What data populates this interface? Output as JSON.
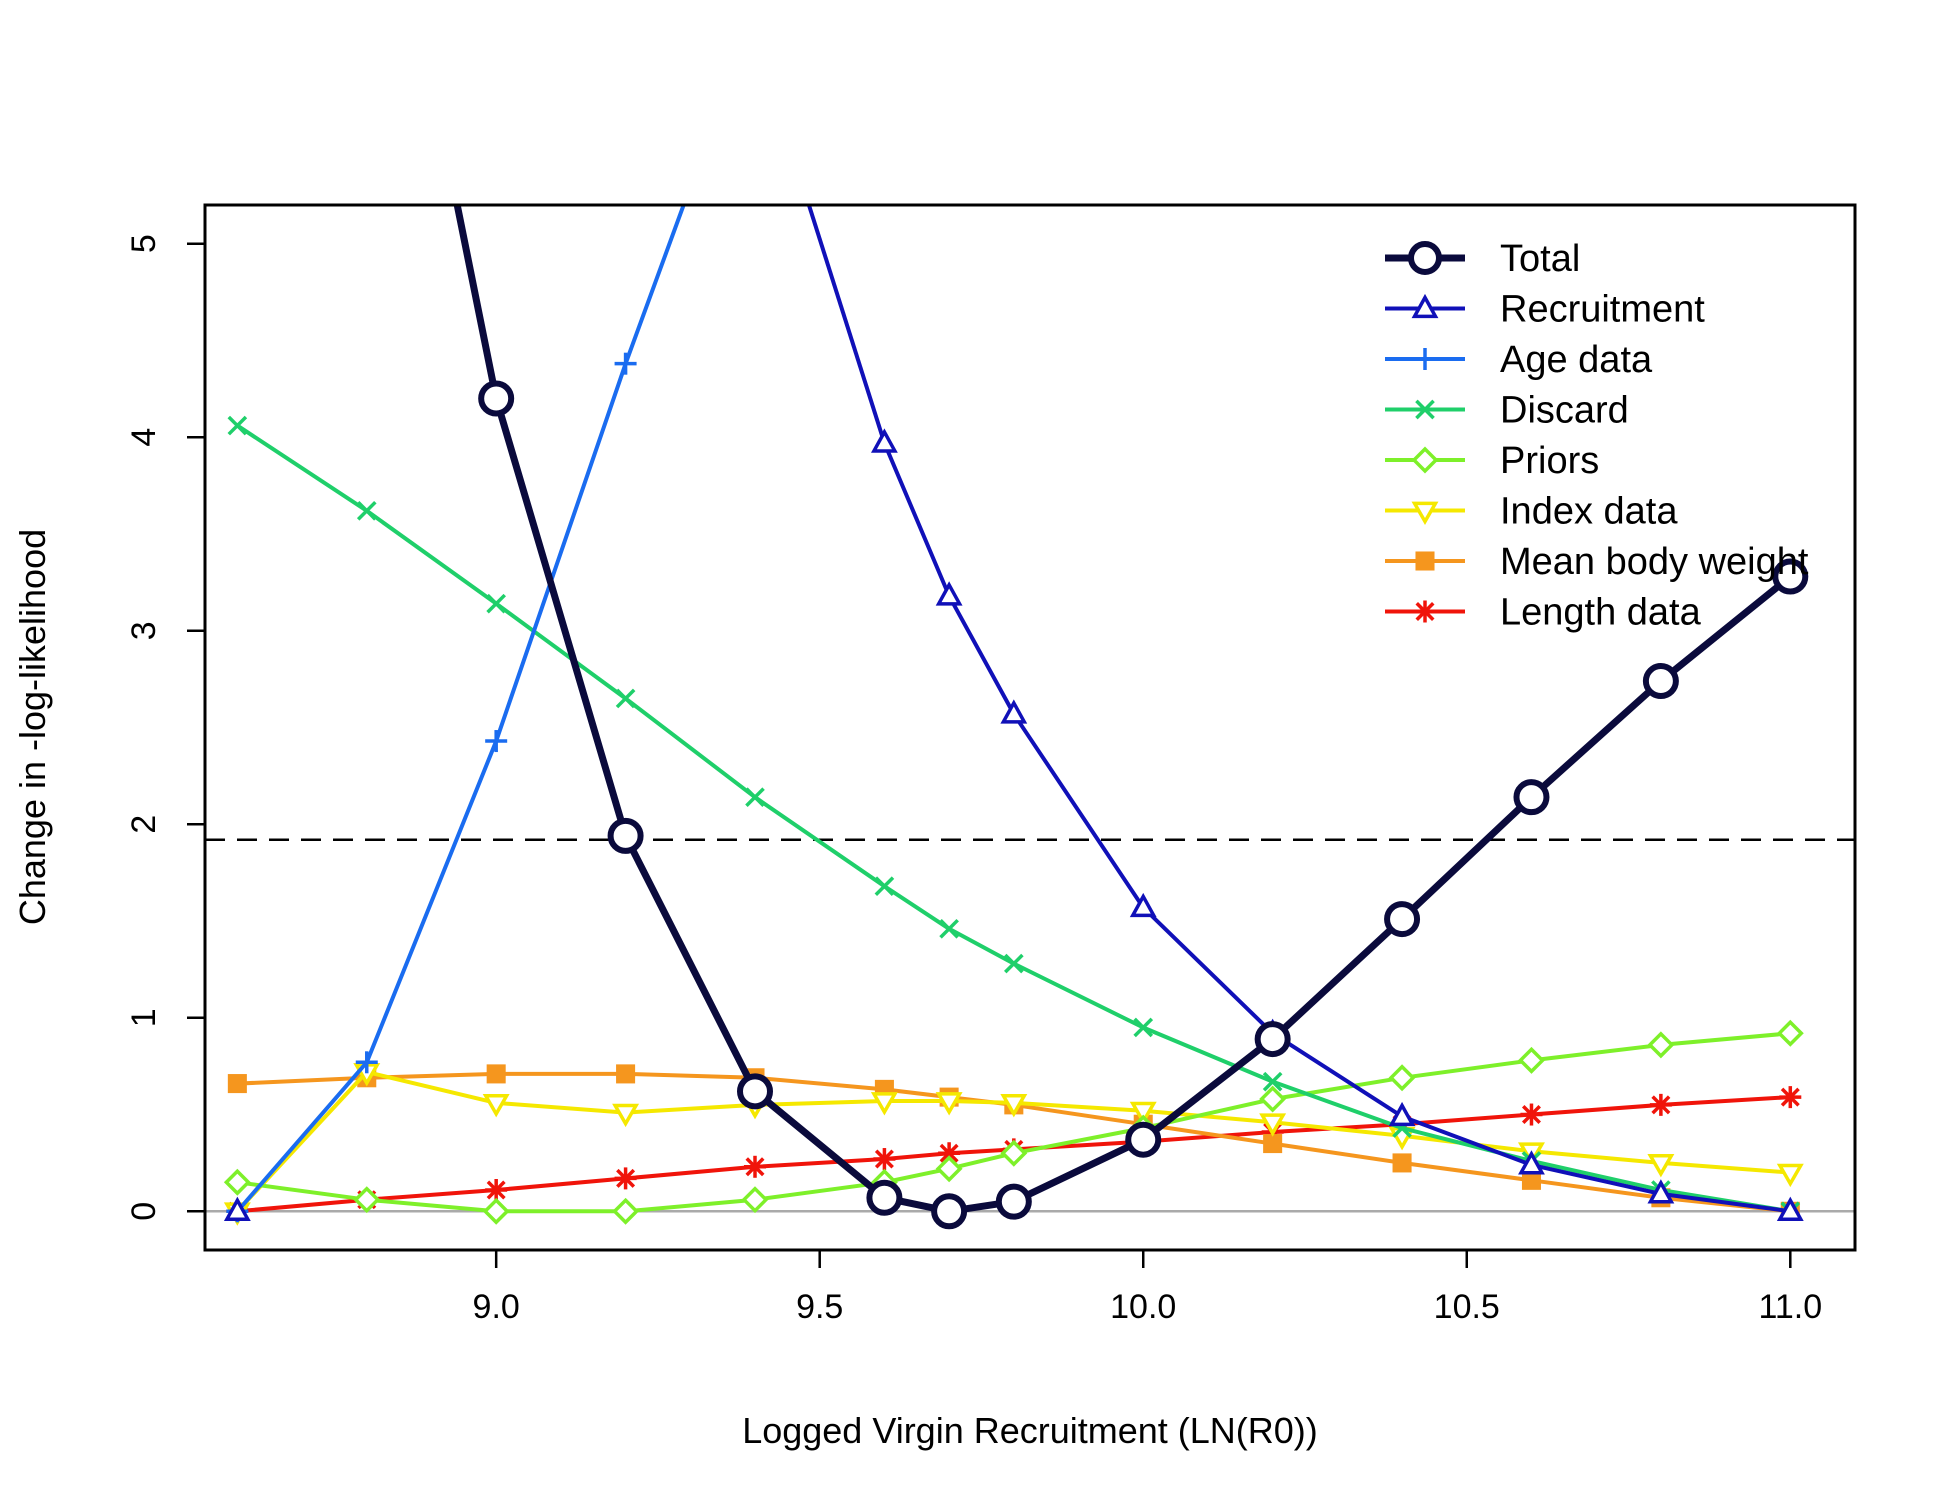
{
  "chart_data": {
    "type": "line",
    "title": "",
    "xlabel": "Logged Virgin Recruitment (LN(R0))",
    "ylabel": "Change in -log-likelihood",
    "xlim": [
      8.55,
      11.1
    ],
    "ylim": [
      -0.2,
      5.2
    ],
    "x_ticks": [
      "9.0",
      "9.5",
      "10.0",
      "10.5",
      "11.0"
    ],
    "y_ticks": [
      "0",
      "1",
      "2",
      "3",
      "4",
      "5"
    ],
    "x": [
      8.6,
      8.8,
      9.0,
      9.2,
      9.4,
      9.6,
      9.7,
      9.8,
      10.0,
      10.2,
      10.4,
      10.6,
      10.8,
      11.0
    ],
    "reference_lines": [
      {
        "type": "horizontal",
        "y": 1.92,
        "style": "dashed",
        "color": "#000000"
      },
      {
        "type": "horizontal",
        "y": 0,
        "style": "solid",
        "color": "#aaaaaa"
      }
    ],
    "legend_position": "top-right",
    "series": [
      {
        "name": "Total",
        "color": "#0a0a3c",
        "marker": "circle",
        "values": [
          null,
          null,
          4.2,
          1.94,
          0.62,
          0.07,
          0.0,
          0.05,
          0.37,
          0.89,
          1.51,
          2.14,
          2.74,
          3.28
        ]
      },
      {
        "name": "Recruitment",
        "color": "#1010b8",
        "marker": "triangle-up",
        "values": [
          0.0,
          null,
          null,
          null,
          null,
          3.97,
          3.18,
          2.57,
          1.57,
          0.92,
          0.49,
          0.24,
          0.09,
          0.0
        ]
      },
      {
        "name": "Age data",
        "color": "#1a6cf0",
        "marker": "plus",
        "values": [
          0.0,
          0.77,
          2.43,
          4.38,
          null,
          null,
          null,
          null,
          null,
          null,
          null,
          null,
          null,
          null
        ]
      },
      {
        "name": "Discard",
        "color": "#1fcf6a",
        "marker": "x",
        "values": [
          4.06,
          3.62,
          3.14,
          2.65,
          2.14,
          1.68,
          1.46,
          1.28,
          0.95,
          0.67,
          0.43,
          0.26,
          0.11,
          0.0
        ]
      },
      {
        "name": "Priors",
        "color": "#7ef02a",
        "marker": "diamond",
        "values": [
          0.15,
          0.06,
          0.0,
          0.0,
          0.06,
          0.15,
          0.22,
          0.3,
          0.43,
          0.58,
          0.69,
          0.78,
          0.86,
          0.92
        ]
      },
      {
        "name": "Index data",
        "color": "#f5e800",
        "marker": "triangle-down",
        "values": [
          0.0,
          0.72,
          0.56,
          0.51,
          0.55,
          0.57,
          0.57,
          0.56,
          0.52,
          0.46,
          0.39,
          0.31,
          0.25,
          0.2
        ]
      },
      {
        "name": "Mean body weight",
        "color": "#f5961e",
        "marker": "square",
        "values": [
          0.66,
          0.69,
          0.71,
          0.71,
          0.69,
          0.63,
          0.59,
          0.55,
          0.45,
          0.35,
          0.25,
          0.16,
          0.07,
          0.0
        ]
      },
      {
        "name": "Length data",
        "color": "#f0140a",
        "marker": "asterisk",
        "values": [
          0.0,
          0.06,
          0.11,
          0.17,
          0.23,
          0.27,
          0.3,
          0.32,
          0.36,
          0.41,
          0.45,
          0.5,
          0.55,
          0.59
        ]
      }
    ]
  }
}
